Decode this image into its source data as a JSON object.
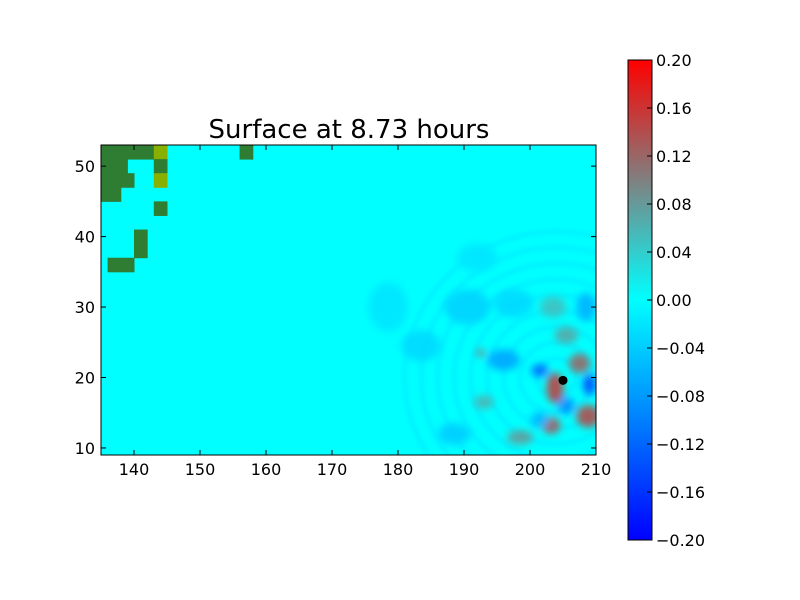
{
  "chart_data": {
    "type": "heatmap",
    "title": "Surface at 8.73 hours",
    "xlabel": "",
    "ylabel": "",
    "xlim": [
      135,
      210
    ],
    "ylim": [
      9,
      53
    ],
    "xticks": [
      140,
      150,
      160,
      170,
      180,
      190,
      200,
      210
    ],
    "yticks": [
      10,
      20,
      30,
      40,
      50
    ],
    "colorbar": {
      "range": [
        -0.2,
        0.2
      ],
      "ticks": [
        "0.20",
        "0.16",
        "0.12",
        "0.08",
        "0.04",
        "0.00",
        "−0.04",
        "−0.08",
        "−0.12",
        "−0.16",
        "−0.20"
      ],
      "ticks_values": [
        0.2,
        0.16,
        0.12,
        0.08,
        0.04,
        0.0,
        -0.04,
        -0.08,
        -0.12,
        -0.16,
        -0.2
      ],
      "colors": {
        "min": "#0000ff",
        "mid_low": "#0080ff",
        "zero": "#00ffff",
        "mid_high": "#808080",
        "max": "#ff0000"
      }
    },
    "background_value": 0.0,
    "land_cells": [
      {
        "x": [
          135,
          139
        ],
        "y": [
          49,
          53
        ],
        "color": "#2e7d32"
      },
      {
        "x": [
          139,
          141
        ],
        "y": [
          51,
          53
        ],
        "color": "#2e7d32"
      },
      {
        "x": [
          141,
          143
        ],
        "y": [
          51,
          53
        ],
        "color": "#2e7d32"
      },
      {
        "x": [
          143,
          145
        ],
        "y": [
          51,
          53
        ],
        "color": "#88b000"
      },
      {
        "x": [
          143,
          145
        ],
        "y": [
          49,
          51
        ],
        "color": "#2e7d32"
      },
      {
        "x": [
          143,
          145
        ],
        "y": [
          47,
          49
        ],
        "color": "#88b000"
      },
      {
        "x": [
          135,
          137
        ],
        "y": [
          47,
          49
        ],
        "color": "#2e7d32"
      },
      {
        "x": [
          137,
          139
        ],
        "y": [
          47,
          49
        ],
        "color": "#2e7d32"
      },
      {
        "x": [
          139,
          140
        ],
        "y": [
          47,
          49
        ],
        "color": "#2e7d32"
      },
      {
        "x": [
          135,
          138
        ],
        "y": [
          45,
          47
        ],
        "color": "#2e7d32"
      },
      {
        "x": [
          143,
          145
        ],
        "y": [
          43,
          45
        ],
        "color": "#2e7d32"
      },
      {
        "x": [
          140,
          142
        ],
        "y": [
          37,
          41
        ],
        "color": "#2e7d32"
      },
      {
        "x": [
          136,
          140
        ],
        "y": [
          35,
          37
        ],
        "color": "#2e7d32"
      },
      {
        "x": [
          156,
          158
        ],
        "y": [
          51,
          53
        ],
        "color": "#2e7d32"
      }
    ],
    "anomalies": [
      {
        "x": 203.8,
        "y": 18.5,
        "rx": 1.3,
        "ry": 2.2,
        "value": 0.15
      },
      {
        "x": 207.5,
        "y": 22.0,
        "rx": 1.6,
        "ry": 1.4,
        "value": 0.12
      },
      {
        "x": 208.8,
        "y": 14.5,
        "rx": 1.8,
        "ry": 1.6,
        "value": 0.14
      },
      {
        "x": 203.2,
        "y": 13.2,
        "rx": 1.4,
        "ry": 1.2,
        "value": 0.13
      },
      {
        "x": 205.5,
        "y": 26.0,
        "rx": 1.8,
        "ry": 1.2,
        "value": 0.07
      },
      {
        "x": 198.5,
        "y": 11.5,
        "rx": 2.0,
        "ry": 1.0,
        "value": 0.08
      },
      {
        "x": 193.0,
        "y": 16.5,
        "rx": 1.5,
        "ry": 1.0,
        "value": 0.06
      },
      {
        "x": 209.0,
        "y": 19.0,
        "rx": 1.0,
        "ry": 1.5,
        "value": -0.14
      },
      {
        "x": 201.5,
        "y": 21.0,
        "rx": 1.3,
        "ry": 0.9,
        "value": -0.12
      },
      {
        "x": 196.0,
        "y": 22.5,
        "rx": 2.5,
        "ry": 1.5,
        "value": -0.07
      },
      {
        "x": 205.5,
        "y": 16.0,
        "rx": 1.3,
        "ry": 1.2,
        "value": -0.09
      },
      {
        "x": 201.5,
        "y": 14.0,
        "rx": 1.4,
        "ry": 1.1,
        "value": -0.06
      },
      {
        "x": 190.5,
        "y": 30.0,
        "rx": 3.5,
        "ry": 2.5,
        "value": -0.035
      },
      {
        "x": 183.5,
        "y": 24.5,
        "rx": 3.0,
        "ry": 2.2,
        "value": -0.03
      },
      {
        "x": 197.5,
        "y": 30.5,
        "rx": 3.0,
        "ry": 2.0,
        "value": -0.03
      },
      {
        "x": 203.5,
        "y": 30.0,
        "rx": 2.0,
        "ry": 1.5,
        "value": 0.05
      },
      {
        "x": 188.5,
        "y": 12.0,
        "rx": 2.5,
        "ry": 1.5,
        "value": -0.04
      },
      {
        "x": 178.5,
        "y": 30.0,
        "rx": 3.0,
        "ry": 3.5,
        "value": -0.02
      },
      {
        "x": 192.0,
        "y": 37.0,
        "rx": 3.0,
        "ry": 2.0,
        "value": -0.02
      },
      {
        "x": 208.5,
        "y": 30.0,
        "rx": 1.5,
        "ry": 2.0,
        "value": -0.06
      },
      {
        "x": 192.5,
        "y": 23.5,
        "rx": 0.6,
        "ry": 0.5,
        "value": 0.12
      }
    ],
    "ripple_center": {
      "x": 204.0,
      "y": 20.0
    },
    "ripple_radii": [
      3,
      5.5,
      8,
      10.5,
      13,
      15.5,
      18,
      20.5,
      23
    ],
    "ripple_value": -0.02,
    "source_marker": {
      "x": 205.0,
      "y": 19.6,
      "color": "#000000"
    }
  }
}
